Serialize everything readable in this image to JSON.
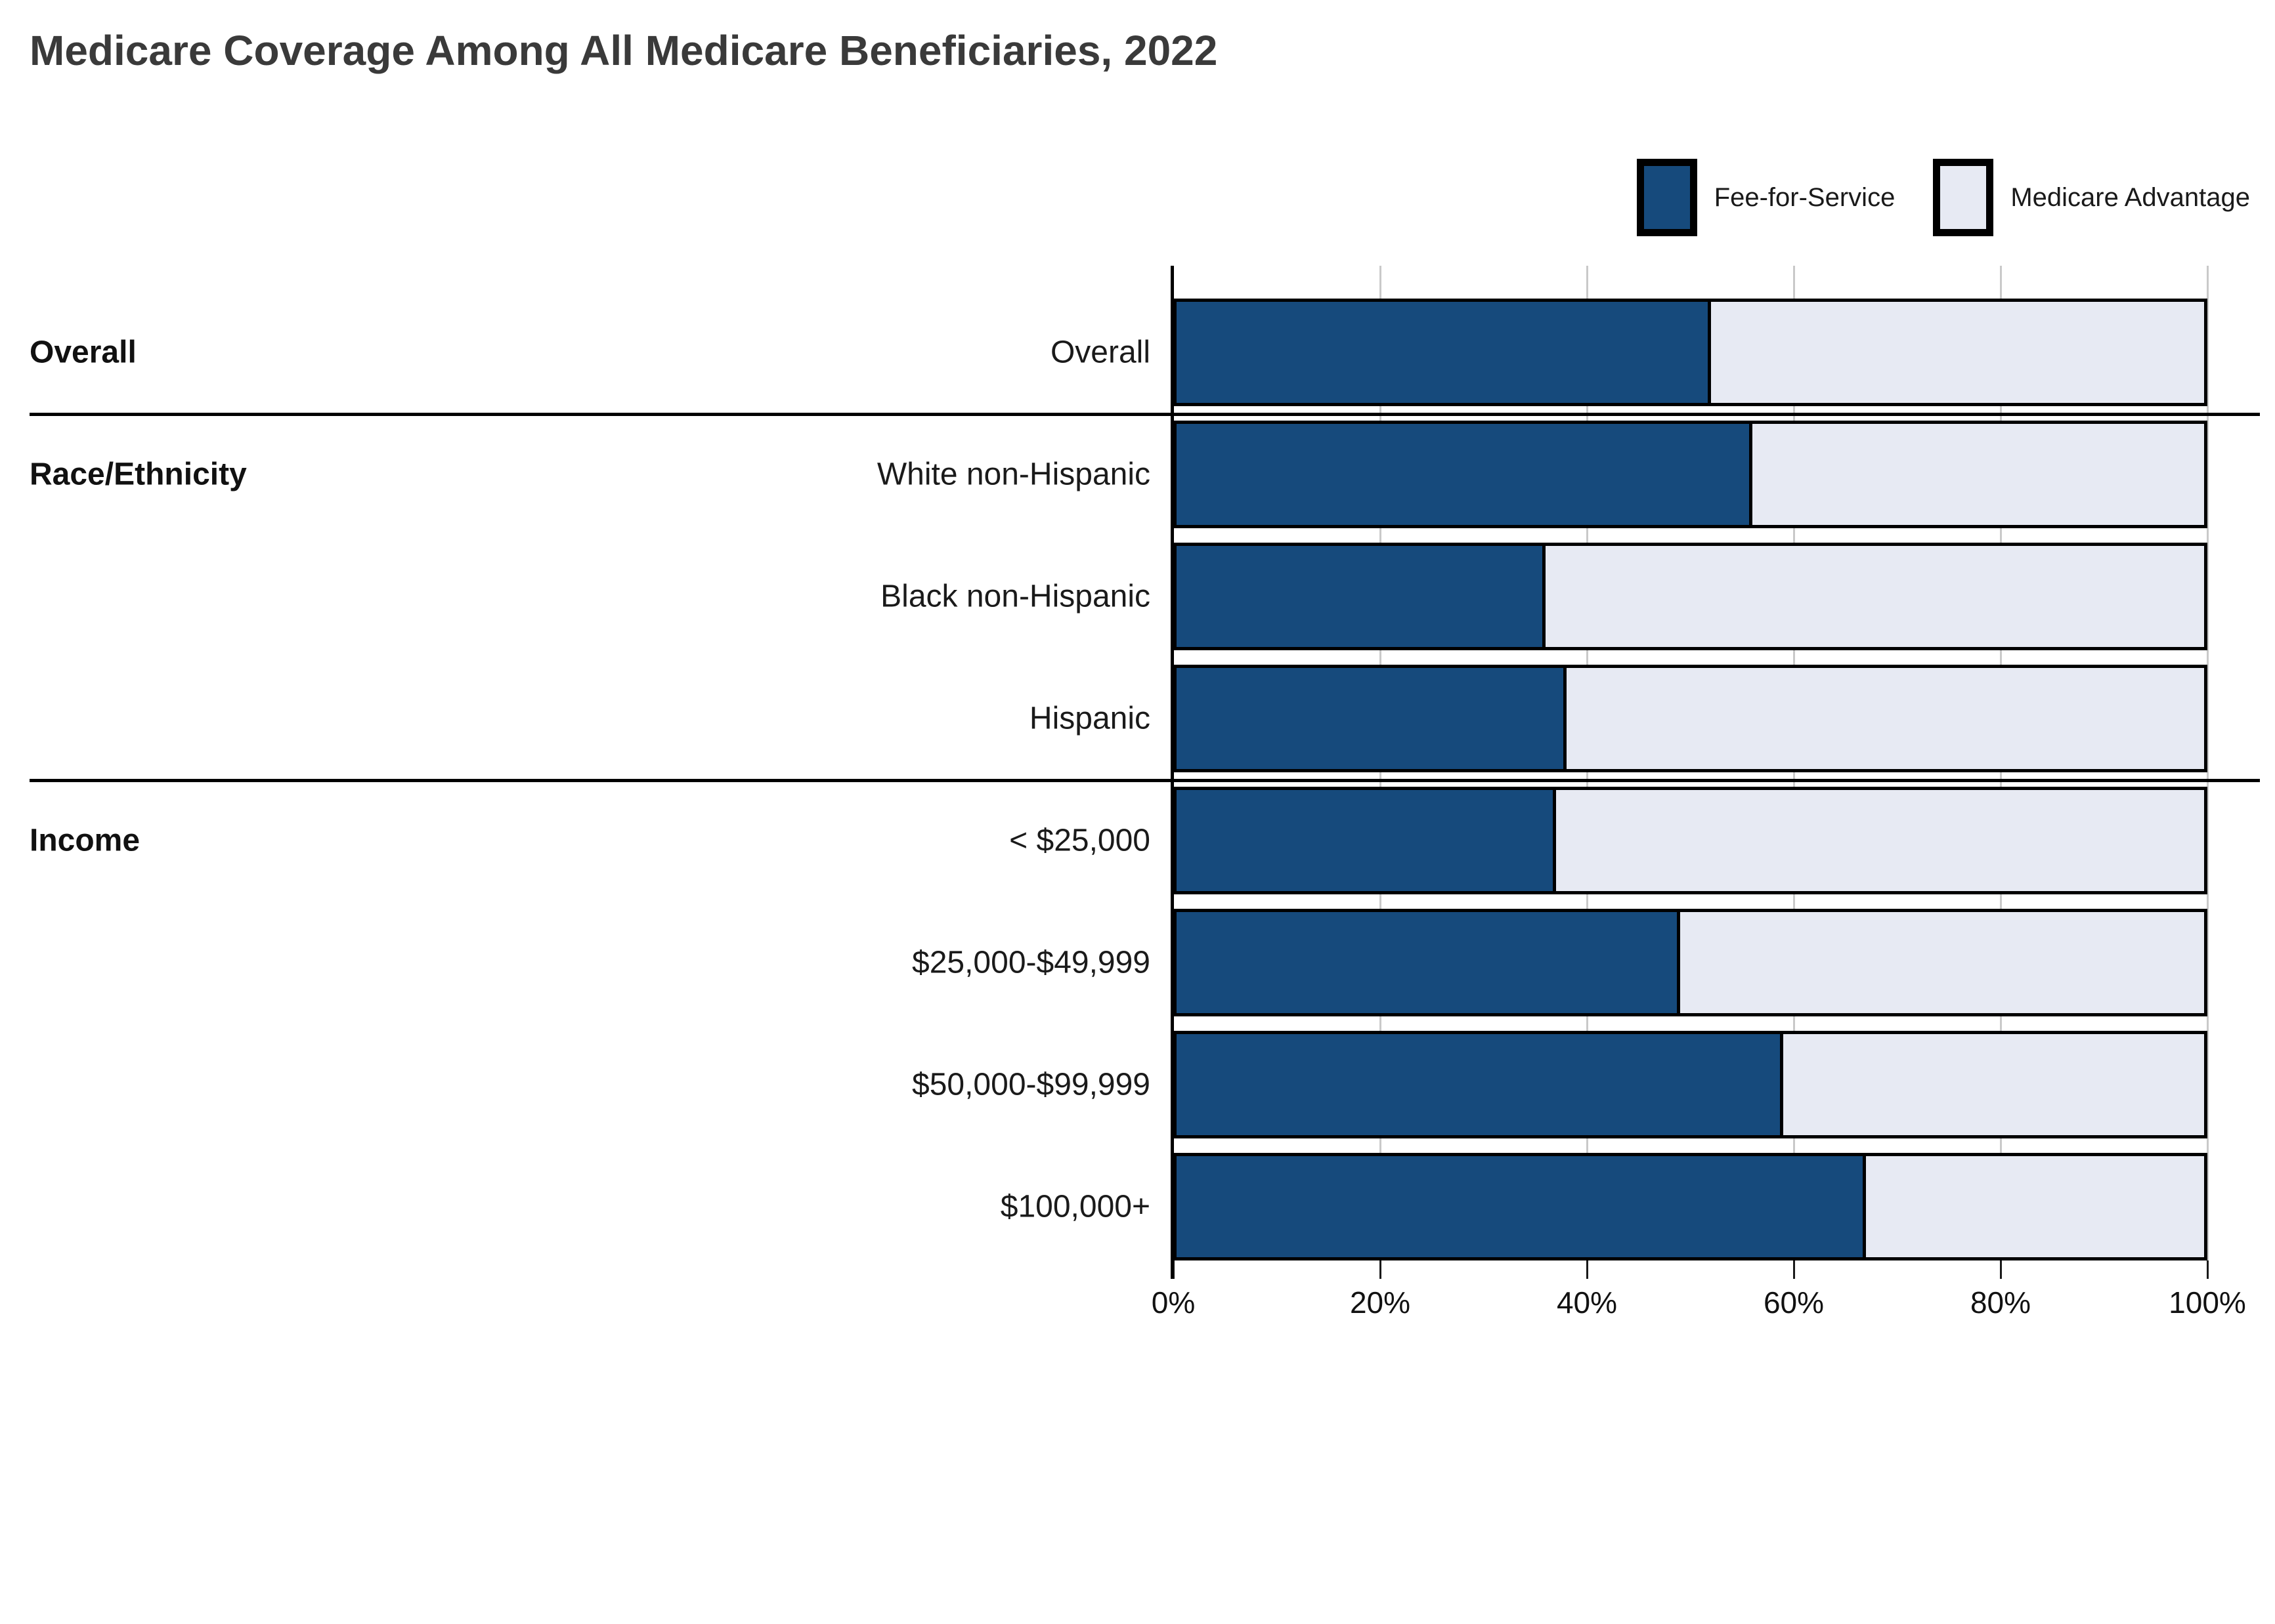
{
  "title": "Medicare Coverage Among All Medicare Beneficiaries, 2022",
  "legend": [
    {
      "label": "Fee-for-Service",
      "color": "#164a7c"
    },
    {
      "label": "Medicare Advantage",
      "color": "#e7eaf3"
    }
  ],
  "colors": {
    "fee_for_service": "#164a7c",
    "medicare_advantage": "#e7eaf3",
    "bar_border": "#000000",
    "gridline": "#c9c9c9",
    "title_text": "#3a3a3a",
    "label_text": "#1a1a1a"
  },
  "chart_data": {
    "type": "bar",
    "orientation": "horizontal",
    "stacked": true,
    "unit": "percent",
    "title": "Medicare Coverage Among All Medicare Beneficiaries, 2022",
    "categories": [
      "Overall",
      "White non-Hispanic",
      "Black non-Hispanic",
      "Hispanic",
      "< $25,000",
      "$25,000-$49,999",
      "$50,000-$99,999",
      "$100,000+"
    ],
    "groups": [
      {
        "label": "Overall",
        "row_indexes": [
          0
        ]
      },
      {
        "label": "Race/Ethnicity",
        "row_indexes": [
          1,
          2,
          3
        ]
      },
      {
        "label": "Income",
        "row_indexes": [
          4,
          5,
          6,
          7
        ]
      }
    ],
    "series": [
      {
        "name": "Fee-for-Service",
        "values": [
          52,
          56,
          36,
          38,
          37,
          49,
          59,
          67
        ]
      },
      {
        "name": "Medicare Advantage",
        "values": [
          48,
          44,
          64,
          62,
          63,
          51,
          41,
          33
        ]
      }
    ],
    "x_axis": {
      "min": 0,
      "max": 100,
      "tick_labels": [
        "0%",
        "20%",
        "40%",
        "60%",
        "80%",
        "100%"
      ],
      "tick_values": [
        0,
        20,
        40,
        60,
        80,
        100
      ]
    },
    "grid": true,
    "legend_position": "top-right"
  }
}
